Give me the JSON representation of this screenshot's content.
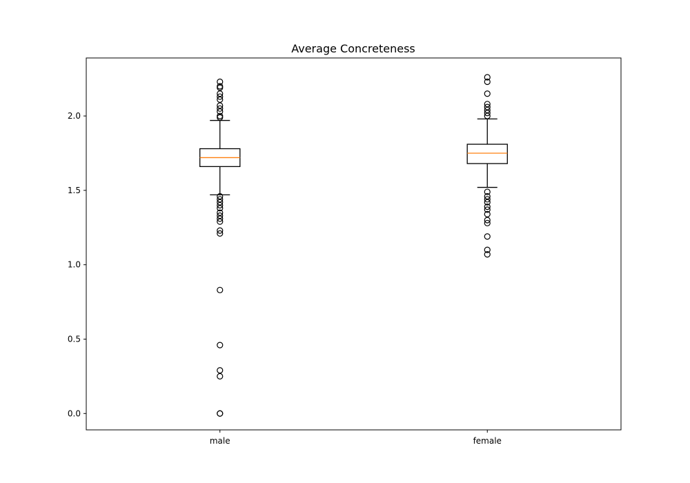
{
  "chart_data": {
    "type": "boxplot",
    "title": "Average Concreteness",
    "xlabel": "",
    "ylabel": "",
    "categories": [
      "male",
      "female"
    ],
    "ylim": [
      -0.11,
      2.39
    ],
    "yticks": [
      0.0,
      0.5,
      1.0,
      1.5,
      2.0
    ],
    "ytick_labels": [
      "0.0",
      "0.5",
      "1.0",
      "1.5",
      "2.0"
    ],
    "grid": false,
    "colors": {
      "median": "#ff7f0e",
      "box": "#000000"
    },
    "series": [
      {
        "category": "male",
        "whisker_low": 1.47,
        "q1": 1.66,
        "median": 1.72,
        "q3": 1.78,
        "whisker_high": 1.97,
        "fliers": [
          2.23,
          2.2,
          2.19,
          2.15,
          2.13,
          2.11,
          2.07,
          2.05,
          2.03,
          2.0,
          1.99,
          1.46,
          1.44,
          1.42,
          1.4,
          1.38,
          1.35,
          1.33,
          1.31,
          1.29,
          1.23,
          1.21,
          0.83,
          0.46,
          0.29,
          0.25,
          0.0,
          0.0
        ]
      },
      {
        "category": "female",
        "whisker_low": 1.52,
        "q1": 1.68,
        "median": 1.75,
        "q3": 1.81,
        "whisker_high": 1.98,
        "fliers": [
          2.26,
          2.23,
          2.15,
          2.08,
          2.06,
          2.04,
          2.02,
          2.0,
          1.49,
          1.46,
          1.44,
          1.42,
          1.39,
          1.37,
          1.34,
          1.3,
          1.28,
          1.19,
          1.1,
          1.07
        ]
      }
    ]
  }
}
